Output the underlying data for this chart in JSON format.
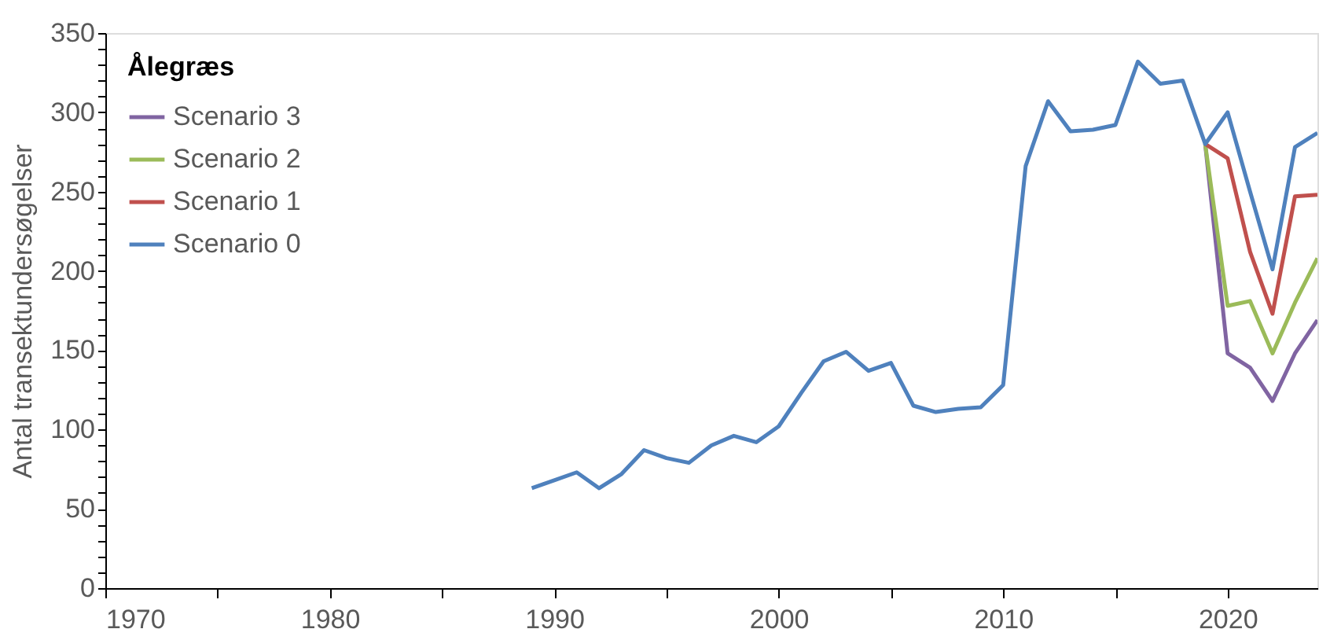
{
  "chart_data": {
    "type": "line",
    "xlabel": null,
    "ylabel": "Antal transektundersøgelser",
    "legend_title": "Ålegræs",
    "x": [
      1989,
      1990,
      1991,
      1992,
      1993,
      1994,
      1995,
      1996,
      1997,
      1998,
      1999,
      2000,
      2001,
      2002,
      2003,
      2004,
      2005,
      2006,
      2007,
      2008,
      2009,
      2010,
      2011,
      2012,
      2013,
      2014,
      2015,
      2016,
      2017,
      2018,
      2019,
      2020,
      2021,
      2022,
      2023,
      2024
    ],
    "series": [
      {
        "name": "Scenario 3",
        "color": "#8064a2",
        "values": [
          null,
          null,
          null,
          null,
          null,
          null,
          null,
          null,
          null,
          null,
          null,
          null,
          null,
          null,
          null,
          null,
          null,
          null,
          null,
          null,
          null,
          null,
          null,
          null,
          null,
          null,
          null,
          null,
          null,
          null,
          280,
          148,
          139,
          118,
          148,
          169
        ]
      },
      {
        "name": "Scenario 2",
        "color": "#9bbb59",
        "values": [
          null,
          null,
          null,
          null,
          null,
          null,
          null,
          null,
          null,
          null,
          null,
          null,
          null,
          null,
          null,
          null,
          null,
          null,
          null,
          null,
          null,
          null,
          null,
          null,
          null,
          null,
          null,
          null,
          null,
          null,
          280,
          178,
          181,
          148,
          180,
          208
        ]
      },
      {
        "name": "Scenario 1",
        "color": "#c0504d",
        "values": [
          null,
          null,
          null,
          null,
          null,
          null,
          null,
          null,
          null,
          null,
          null,
          null,
          null,
          null,
          null,
          null,
          null,
          null,
          null,
          null,
          null,
          null,
          null,
          null,
          null,
          null,
          null,
          null,
          null,
          null,
          280,
          271,
          212,
          173,
          247,
          248
        ]
      },
      {
        "name": "Scenario 0",
        "color": "#4f81bd",
        "values": [
          63,
          68,
          73,
          63,
          72,
          87,
          82,
          79,
          90,
          96,
          92,
          102,
          123,
          143,
          149,
          137,
          142,
          115,
          111,
          113,
          114,
          128,
          266,
          307,
          288,
          289,
          292,
          332,
          318,
          320,
          280,
          300,
          250,
          201,
          278,
          287
        ]
      }
    ],
    "xlim": [
      1970,
      2024
    ],
    "xticks": [
      1970,
      {
        "value": 1975,
        "label": null
      },
      1980,
      {
        "value": 1985,
        "label": null
      },
      1990,
      {
        "value": 1995,
        "label": null
      },
      2000,
      {
        "value": 2005,
        "label": null
      },
      2010,
      {
        "value": 2015,
        "label": null
      },
      2020
    ],
    "ylim": [
      0,
      350
    ],
    "yticks": [
      0,
      {
        "value": 10,
        "label": null
      },
      {
        "value": 20,
        "label": null
      },
      {
        "value": 30,
        "label": null
      },
      {
        "value": 40,
        "label": null
      },
      50,
      {
        "value": 60,
        "label": null
      },
      {
        "value": 70,
        "label": null
      },
      {
        "value": 80,
        "label": null
      },
      {
        "value": 90,
        "label": null
      },
      100,
      {
        "value": 110,
        "label": null
      },
      {
        "value": 120,
        "label": null
      },
      {
        "value": 130,
        "label": null
      },
      {
        "value": 140,
        "label": null
      },
      150,
      {
        "value": 160,
        "label": null
      },
      {
        "value": 170,
        "label": null
      },
      {
        "value": 180,
        "label": null
      },
      {
        "value": 190,
        "label": null
      },
      200,
      {
        "value": 210,
        "label": null
      },
      {
        "value": 220,
        "label": null
      },
      {
        "value": 230,
        "label": null
      },
      {
        "value": 240,
        "label": null
      },
      250,
      {
        "value": 260,
        "label": null
      },
      {
        "value": 270,
        "label": null
      },
      {
        "value": 280,
        "label": null
      },
      {
        "value": 290,
        "label": null
      },
      300,
      {
        "value": 310,
        "label": null
      },
      {
        "value": 320,
        "label": null
      },
      {
        "value": 330,
        "label": null
      },
      {
        "value": 340,
        "label": null
      },
      350
    ],
    "grid": false,
    "legend": "top left",
    "marker": "none",
    "line_style": "solid"
  }
}
